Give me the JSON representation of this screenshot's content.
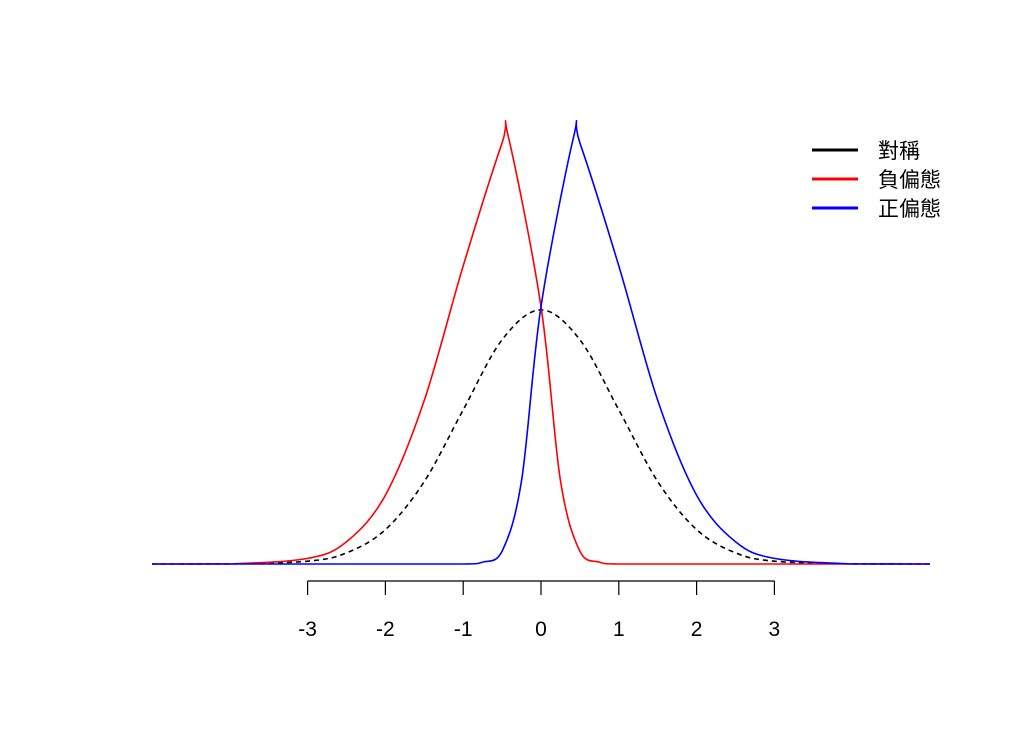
{
  "chart_data": {
    "type": "line",
    "title": "",
    "xlabel": "",
    "ylabel": "",
    "xlim": [
      -5,
      5
    ],
    "xticks": [
      -3,
      -2,
      -1,
      0,
      1,
      2,
      3
    ],
    "xtick_labels": [
      "-3",
      "-2",
      "-1",
      "0",
      "1",
      "2",
      "3"
    ],
    "y_axis_shown": false,
    "grid": false,
    "legend_position": "top-right",
    "series": [
      {
        "name": "對稱",
        "color": "#000000",
        "line_style": "dashed",
        "x": [
          -5,
          -4,
          -3,
          -2.5,
          -2,
          -1.5,
          -1,
          -0.5,
          0,
          0.5,
          1,
          1.5,
          2,
          2.5,
          3,
          4,
          5
        ],
        "y": [
          0.0,
          0.0001,
          0.0044,
          0.0175,
          0.054,
          0.1295,
          0.242,
          0.352,
          0.399,
          0.352,
          0.242,
          0.1295,
          0.054,
          0.0175,
          0.0044,
          0.0001,
          0.0
        ]
      },
      {
        "name": "負偏態",
        "color": "#ff0000",
        "line_style": "solid",
        "x": [
          -5,
          -4,
          -3,
          -2.5,
          -2,
          -1.5,
          -1,
          -0.5,
          -0.42,
          0,
          0.25,
          0.5,
          0.75,
          1,
          2,
          3,
          5
        ],
        "y": [
          0.0,
          0.0002,
          0.0088,
          0.035,
          0.108,
          0.257,
          0.468,
          0.661,
          0.671,
          0.404,
          0.131,
          0.02,
          0.003,
          0.0,
          0.0,
          0.0,
          0.0
        ]
      },
      {
        "name": "正偏態",
        "color": "#0000ff",
        "line_style": "solid",
        "x": [
          -5,
          -3,
          -2,
          -1,
          -0.75,
          -0.5,
          -0.25,
          0,
          0.42,
          0.5,
          1,
          1.5,
          2,
          2.5,
          3,
          4,
          5
        ],
        "y": [
          0.0,
          0.0,
          0.0,
          0.0,
          0.003,
          0.02,
          0.131,
          0.404,
          0.671,
          0.661,
          0.468,
          0.257,
          0.108,
          0.035,
          0.0088,
          0.0002,
          0.0
        ]
      }
    ]
  },
  "legend": {
    "items": [
      {
        "label": "對稱",
        "color": "#000000"
      },
      {
        "label": "負偏態",
        "color": "#ff0000"
      },
      {
        "label": "正偏態",
        "color": "#0000ff"
      }
    ]
  }
}
